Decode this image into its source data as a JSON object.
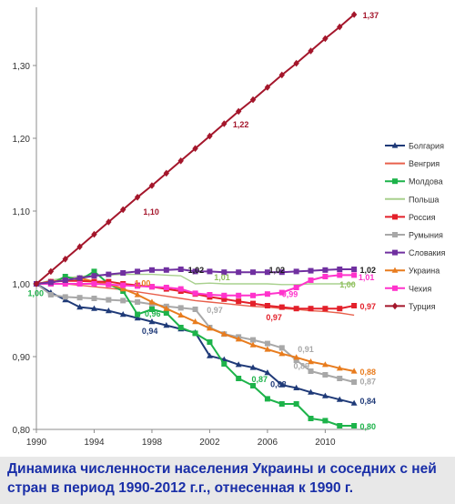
{
  "caption": "Динамика численности населения Украины и соседних с ней стран в период 1990-2012 г.г., отнесенная к 1990 г.",
  "chart_data": {
    "type": "line",
    "title": "",
    "xlabel": "",
    "ylabel": "",
    "xlim": [
      1990,
      2013
    ],
    "ylim": [
      0.8,
      1.38
    ],
    "x_ticks": [
      1990,
      1994,
      1998,
      2002,
      2006,
      2010
    ],
    "y_ticks": [
      0.8,
      0.9,
      1.0,
      1.1,
      1.2,
      1.3
    ],
    "y_tick_labels": [
      "0,80",
      "0,90",
      "1,00",
      "1,10",
      "1,20",
      "1,30"
    ],
    "grid": false,
    "legend_position": "right",
    "x": [
      1990,
      1991,
      1992,
      1993,
      1994,
      1995,
      1996,
      1997,
      1998,
      1999,
      2000,
      2001,
      2002,
      2003,
      2004,
      2005,
      2006,
      2007,
      2008,
      2009,
      2010,
      2011,
      2012
    ],
    "series": [
      {
        "name": "Болгария",
        "color": "#1f3a78",
        "marker": "triangle",
        "values": [
          1.0,
          0.988,
          0.978,
          0.968,
          0.966,
          0.963,
          0.958,
          0.953,
          0.948,
          0.943,
          0.938,
          0.933,
          0.901,
          0.896,
          0.889,
          0.885,
          0.878,
          0.861,
          0.857,
          0.851,
          0.846,
          0.841,
          0.836
        ]
      },
      {
        "name": "Венгрия",
        "color": "#e8604c",
        "marker": "none",
        "values": [
          1.0,
          1.0,
          1.0,
          0.998,
          0.996,
          0.994,
          0.992,
          0.989,
          0.986,
          0.983,
          0.98,
          0.977,
          0.975,
          0.973,
          0.971,
          0.969,
          0.968,
          0.966,
          0.965,
          0.963,
          0.962,
          0.96,
          0.957
        ]
      },
      {
        "name": "Молдова",
        "color": "#1db34a",
        "marker": "square",
        "values": [
          1.0,
          1.0,
          1.01,
          1.005,
          1.017,
          1.0,
          0.99,
          0.958,
          0.965,
          0.96,
          0.94,
          0.932,
          0.92,
          0.89,
          0.87,
          0.86,
          0.842,
          0.835,
          0.835,
          0.815,
          0.812,
          0.805,
          0.805
        ]
      },
      {
        "name": "Польша",
        "color": "#a8d08d",
        "marker": "none",
        "values": [
          1.0,
          1.005,
          1.008,
          1.01,
          1.012,
          1.012,
          1.013,
          1.013,
          1.013,
          1.012,
          1.011,
          1.0,
          1.001,
          1.0,
          1.0,
          1.0,
          1.0,
          0.999,
          0.999,
          1.0,
          1.0,
          1.0,
          1.0
        ]
      },
      {
        "name": "Россия",
        "color": "#e3202a",
        "marker": "square",
        "values": [
          1.0,
          1.003,
          1.004,
          1.004,
          1.003,
          1.003,
          1.0,
          0.998,
          0.996,
          0.993,
          0.99,
          0.986,
          0.982,
          0.979,
          0.976,
          0.973,
          0.97,
          0.968,
          0.966,
          0.966,
          0.966,
          0.966,
          0.97
        ]
      },
      {
        "name": "Румыния",
        "color": "#a8a8a8",
        "marker": "square",
        "values": [
          1.0,
          0.985,
          0.982,
          0.981,
          0.98,
          0.978,
          0.977,
          0.975,
          0.972,
          0.969,
          0.967,
          0.965,
          0.94,
          0.931,
          0.927,
          0.923,
          0.918,
          0.912,
          0.895,
          0.88,
          0.875,
          0.87,
          0.865
        ]
      },
      {
        "name": "Словакия",
        "color": "#7030a0",
        "marker": "square",
        "values": [
          1.0,
          1.002,
          1.005,
          1.008,
          1.011,
          1.013,
          1.015,
          1.017,
          1.019,
          1.019,
          1.02,
          1.017,
          1.017,
          1.016,
          1.016,
          1.016,
          1.016,
          1.016,
          1.017,
          1.018,
          1.019,
          1.02,
          1.02
        ]
      },
      {
        "name": "Украина",
        "color": "#e87c1e",
        "marker": "triangle",
        "values": [
          1.0,
          1.003,
          1.005,
          1.008,
          1.003,
          1.0,
          0.993,
          0.985,
          0.975,
          0.966,
          0.957,
          0.948,
          0.939,
          0.931,
          0.924,
          0.916,
          0.91,
          0.904,
          0.899,
          0.893,
          0.889,
          0.884,
          0.88
        ]
      },
      {
        "name": "Чехия",
        "color": "#ff33cc",
        "marker": "square",
        "values": [
          1.0,
          1.0,
          1.0,
          1.0,
          1.0,
          0.999,
          0.998,
          0.997,
          0.996,
          0.995,
          0.993,
          0.987,
          0.985,
          0.984,
          0.984,
          0.984,
          0.986,
          0.988,
          0.995,
          1.005,
          1.01,
          1.012,
          1.012
        ]
      },
      {
        "name": "Турция",
        "color": "#a4162b",
        "marker": "diamond",
        "values": [
          1.0,
          1.017,
          1.034,
          1.051,
          1.068,
          1.085,
          1.102,
          1.119,
          1.135,
          1.152,
          1.169,
          1.186,
          1.203,
          1.22,
          1.237,
          1.253,
          1.27,
          1.287,
          1.303,
          1.32,
          1.337,
          1.353,
          1.37
        ]
      }
    ],
    "data_labels": [
      {
        "text": "1,37",
        "x": 2012.6,
        "y": 1.37,
        "color": "#a4162b"
      },
      {
        "text": "1,22",
        "x": 2003.6,
        "y": 1.22,
        "color": "#a4162b"
      },
      {
        "text": "1,10",
        "x": 1997.4,
        "y": 1.1,
        "color": "#a4162b"
      },
      {
        "text": "1,02",
        "x": 2000.5,
        "y": 1.02,
        "color": "#1a1a1a"
      },
      {
        "text": "1,02",
        "x": 2006.1,
        "y": 1.02,
        "color": "#1a1a1a"
      },
      {
        "text": "1,02",
        "x": 2012.4,
        "y": 1.02,
        "color": "#1a1a1a"
      },
      {
        "text": "1,01",
        "x": 2002.3,
        "y": 1.01,
        "color": "#8fbf5a"
      },
      {
        "text": "1,01",
        "x": 2012.3,
        "y": 1.01,
        "color": "#ff33cc"
      },
      {
        "text": "1,00",
        "x": 1996.8,
        "y": 1.002,
        "color": "#e87c1e"
      },
      {
        "text": "1,00",
        "x": 2011.0,
        "y": 1.0,
        "color": "#8fbf5a"
      },
      {
        "text": "1,00",
        "x": 1989.4,
        "y": 0.988,
        "color": "#1db34a"
      },
      {
        "text": "0,99",
        "x": 2007.0,
        "y": 0.987,
        "color": "#ff33cc"
      },
      {
        "text": "0,97",
        "x": 2012.4,
        "y": 0.97,
        "color": "#e3202a"
      },
      {
        "text": "0,97",
        "x": 2005.9,
        "y": 0.955,
        "color": "#e3202a"
      },
      {
        "text": "0,97",
        "x": 2001.8,
        "y": 0.965,
        "color": "#a8a8a8"
      },
      {
        "text": "0,96",
        "x": 1997.5,
        "y": 0.96,
        "color": "#1db34a"
      },
      {
        "text": "0,94",
        "x": 1997.3,
        "y": 0.936,
        "color": "#1f3a78"
      },
      {
        "text": "0,91",
        "x": 2008.1,
        "y": 0.911,
        "color": "#a8a8a8"
      },
      {
        "text": "0,89",
        "x": 2007.8,
        "y": 0.888,
        "color": "#a8a8a8"
      },
      {
        "text": "0,88",
        "x": 2012.4,
        "y": 0.88,
        "color": "#e87c1e"
      },
      {
        "text": "0,88",
        "x": 2006.2,
        "y": 0.863,
        "color": "#1f3a78"
      },
      {
        "text": "0,87",
        "x": 2012.4,
        "y": 0.867,
        "color": "#a8a8a8"
      },
      {
        "text": "0,87",
        "x": 2004.9,
        "y": 0.87,
        "color": "#1db34a"
      },
      {
        "text": "0,84",
        "x": 2012.4,
        "y": 0.84,
        "color": "#1f3a78"
      },
      {
        "text": "0,80",
        "x": 2012.4,
        "y": 0.805,
        "color": "#1db34a"
      }
    ]
  }
}
